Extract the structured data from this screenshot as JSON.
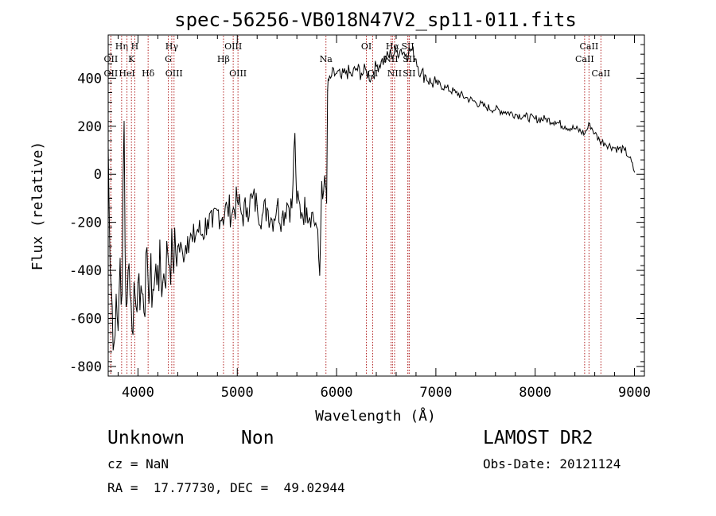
{
  "chart_data": {
    "type": "line",
    "title": "spec-56256-VB018N47V2_sp11-011.fits",
    "xlabel": "Wavelength (Å)",
    "ylabel": "Flux (relative)",
    "xlim": [
      3700,
      9100
    ],
    "ylim": [
      -840,
      580
    ],
    "xticks": [
      4000,
      5000,
      6000,
      7000,
      8000,
      9000
    ],
    "yticks": [
      -800,
      -600,
      -400,
      -200,
      0,
      200,
      400
    ],
    "grid": false,
    "line_color": "#000000",
    "marker_color": "#b22222",
    "series": [
      {
        "x": [
          3700,
          3720,
          3740,
          3760,
          3780,
          3800,
          3820,
          3840,
          3860,
          3870,
          3880,
          3900,
          3920,
          3940,
          3960,
          3980,
          4000,
          4050,
          4100,
          4150,
          4200,
          4250,
          4300,
          4350,
          4400,
          4450,
          4500,
          4550,
          4600,
          4650,
          4700,
          4750,
          4800,
          4850,
          4900,
          4950,
          5000,
          5050,
          5100,
          5150,
          5200,
          5250,
          5300,
          5350,
          5400,
          5450,
          5500,
          5550,
          5580,
          5600,
          5650,
          5700,
          5750,
          5800,
          5830,
          5850,
          5870,
          5890,
          5900,
          5910,
          5920,
          5950,
          6000,
          6050,
          6100,
          6150,
          6200,
          6250,
          6300,
          6350,
          6400,
          6450,
          6500,
          6550,
          6600,
          6650,
          6700,
          6750,
          6800,
          6850,
          6900,
          6950,
          7000,
          7100,
          7200,
          7300,
          7400,
          7500,
          7600,
          7700,
          7800,
          7900,
          8000,
          8100,
          8200,
          8300,
          8400,
          8500,
          8550,
          8600,
          8650,
          8700,
          8800,
          8900,
          8950,
          9000
        ],
        "y": [
          110,
          -400,
          -550,
          -700,
          -500,
          -650,
          -350,
          -500,
          220,
          -300,
          -550,
          -400,
          -500,
          -650,
          -450,
          -550,
          -450,
          -500,
          -420,
          -480,
          -380,
          -450,
          -330,
          -350,
          -300,
          -330,
          -260,
          -280,
          -230,
          -250,
          -190,
          -220,
          -150,
          -180,
          -140,
          -160,
          -110,
          -170,
          -140,
          -100,
          -130,
          -170,
          -140,
          -190,
          -130,
          -180,
          -120,
          -140,
          170,
          -120,
          -160,
          -140,
          -160,
          -220,
          -420,
          -30,
          -70,
          -50,
          -120,
          350,
          390,
          410,
          420,
          400,
          430,
          410,
          440,
          420,
          430,
          400,
          450,
          470,
          480,
          500,
          510,
          520,
          500,
          520,
          480,
          420,
          410,
          380,
          380,
          360,
          340,
          320,
          300,
          280,
          270,
          260,
          250,
          240,
          230,
          230,
          220,
          200,
          190,
          170,
          210,
          170,
          140,
          130,
          110,
          100,
          70,
          10
        ]
      }
    ],
    "line_markers": [
      {
        "label": "OII",
        "x": 3727,
        "row": 2
      },
      {
        "label": "OII",
        "x": 3727,
        "row": 3
      },
      {
        "label": "Hη",
        "x": 3835,
        "row": 1
      },
      {
        "label": "HeI",
        "x": 3889,
        "row": 3
      },
      {
        "label": "K",
        "x": 3934,
        "row": 2
      },
      {
        "label": "H",
        "x": 3968,
        "row": 1
      },
      {
        "label": "Hδ",
        "x": 4102,
        "row": 3
      },
      {
        "label": "Hγ",
        "x": 4340,
        "row": 1
      },
      {
        "label": "G",
        "x": 4305,
        "row": 2
      },
      {
        "label": "OIII",
        "x": 4363,
        "row": 3
      },
      {
        "label": "Hβ",
        "x": 4861,
        "row": 2
      },
      {
        "label": "OIII",
        "x": 4959,
        "row": 1
      },
      {
        "label": "OIII",
        "x": 5007,
        "row": 3
      },
      {
        "label": "Na",
        "x": 5893,
        "row": 2
      },
      {
        "label": "OI",
        "x": 6300,
        "row": 1
      },
      {
        "label": "OI",
        "x": 6364,
        "row": 3
      },
      {
        "label": "Hα",
        "x": 6563,
        "row": 1
      },
      {
        "label": "NII",
        "x": 6548,
        "row": 2
      },
      {
        "label": "NII",
        "x": 6584,
        "row": 3
      },
      {
        "label": "SII",
        "x": 6717,
        "row": 1
      },
      {
        "label": "SII",
        "x": 6731,
        "row": 2
      },
      {
        "label": "SII",
        "x": 6731,
        "row": 3
      },
      {
        "label": "CaII",
        "x": 8542,
        "row": 1
      },
      {
        "label": "CaII",
        "x": 8498,
        "row": 2
      },
      {
        "label": "CaII",
        "x": 8662,
        "row": 3
      }
    ]
  },
  "info": {
    "class": "Unknown",
    "subclass": "Non",
    "survey": "LAMOST DR2",
    "cz": "cz = NaN",
    "obs_date": "Obs-Date: 20121124",
    "coords": "RA =  17.77730, DEC =  49.02944"
  }
}
